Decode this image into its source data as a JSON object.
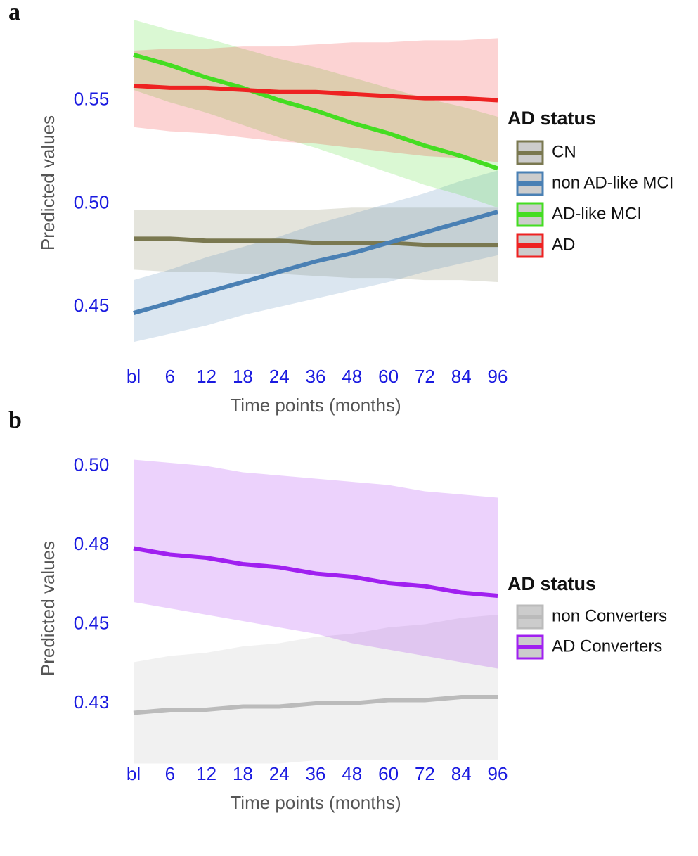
{
  "chart_data": [
    {
      "type": "line",
      "panel_label": "a",
      "y_label": "Predicted values",
      "x_label": "Time points (months)",
      "legend_title": "AD status",
      "legend": "right",
      "grid": false,
      "categories": [
        "bl",
        "6",
        "12",
        "18",
        "24",
        "36",
        "48",
        "60",
        "72",
        "84",
        "96"
      ],
      "ylim": [
        0.43,
        0.59
      ],
      "yticks": [
        0.45,
        {
          "value": 0.5,
          "label": "0.50"
        },
        0.55
      ],
      "series": [
        {
          "name": "CN",
          "color": "#7a7850",
          "values": [
            0.483,
            0.483,
            0.482,
            0.482,
            0.482,
            0.481,
            0.481,
            0.481,
            0.48,
            0.48,
            0.48
          ],
          "lower": [
            0.468,
            0.467,
            0.467,
            0.466,
            0.466,
            0.465,
            0.464,
            0.464,
            0.463,
            0.463,
            0.462
          ],
          "upper": [
            0.497,
            0.497,
            0.497,
            0.497,
            0.497,
            0.497,
            0.498,
            0.498,
            0.498,
            0.498,
            0.498
          ]
        },
        {
          "name": "non AD-like MCI",
          "color": "#4a80b4",
          "values": [
            0.447,
            0.452,
            0.457,
            0.462,
            0.467,
            0.472,
            0.476,
            0.481,
            0.486,
            0.491,
            0.496
          ],
          "lower": [
            0.433,
            0.437,
            0.441,
            0.446,
            0.45,
            0.454,
            0.458,
            0.462,
            0.467,
            0.471,
            0.475
          ],
          "upper": [
            0.463,
            0.468,
            0.474,
            0.479,
            0.484,
            0.49,
            0.495,
            0.5,
            0.505,
            0.511,
            0.516
          ]
        },
        {
          "name": "AD-like MCI",
          "color": "#44dd22",
          "values": [
            0.572,
            0.567,
            0.561,
            0.556,
            0.55,
            0.545,
            0.539,
            0.534,
            0.528,
            0.523,
            0.517
          ],
          "lower": [
            0.555,
            0.549,
            0.544,
            0.538,
            0.532,
            0.527,
            0.521,
            0.515,
            0.509,
            0.504,
            0.498
          ],
          "upper": [
            0.589,
            0.584,
            0.58,
            0.575,
            0.57,
            0.566,
            0.561,
            0.556,
            0.551,
            0.547,
            0.542
          ]
        },
        {
          "name": "AD",
          "color": "#ee2222",
          "values": [
            0.557,
            0.556,
            0.556,
            0.555,
            0.554,
            0.554,
            0.553,
            0.552,
            0.551,
            0.551,
            0.55
          ],
          "lower": [
            0.537,
            0.535,
            0.534,
            0.532,
            0.53,
            0.529,
            0.527,
            0.525,
            0.523,
            0.522,
            0.52
          ],
          "upper": [
            0.574,
            0.575,
            0.575,
            0.576,
            0.576,
            0.577,
            0.578,
            0.578,
            0.579,
            0.579,
            0.58
          ]
        }
      ]
    },
    {
      "type": "line",
      "panel_label": "b",
      "y_label": "Predicted values",
      "x_label": "Time points (months)",
      "legend_title": "AD status",
      "legend": "right",
      "grid": false,
      "categories": [
        "bl",
        "6",
        "12",
        "18",
        "24",
        "36",
        "48",
        "60",
        "72",
        "84",
        "96"
      ],
      "ylim": [
        0.405,
        0.505
      ],
      "yticks": [
        {
          "value": 0.425,
          "label": "0.43"
        },
        0.45,
        {
          "value": 0.475,
          "label": "0.48"
        },
        {
          "value": 0.5,
          "label": "0.50"
        }
      ],
      "series": [
        {
          "name": "non Converters",
          "color": "#bbbbbb",
          "values": [
            0.422,
            0.423,
            0.423,
            0.424,
            0.424,
            0.425,
            0.425,
            0.426,
            0.426,
            0.427,
            0.427
          ],
          "lower": [
            0.406,
            0.406,
            0.406,
            0.406,
            0.406,
            0.407,
            0.407,
            0.407,
            0.407,
            0.407,
            0.407
          ],
          "upper": [
            0.438,
            0.44,
            0.441,
            0.443,
            0.444,
            0.446,
            0.447,
            0.449,
            0.45,
            0.452,
            0.453
          ]
        },
        {
          "name": "AD Converters",
          "color": "#a020f0",
          "values": [
            0.474,
            0.472,
            0.471,
            0.469,
            0.468,
            0.466,
            0.465,
            0.463,
            0.462,
            0.46,
            0.459
          ],
          "lower": [
            0.457,
            0.455,
            0.453,
            0.451,
            0.449,
            0.447,
            0.444,
            0.442,
            0.44,
            0.438,
            0.436
          ],
          "upper": [
            0.502,
            0.501,
            0.5,
            0.498,
            0.497,
            0.496,
            0.495,
            0.494,
            0.492,
            0.491,
            0.49
          ]
        }
      ]
    }
  ]
}
